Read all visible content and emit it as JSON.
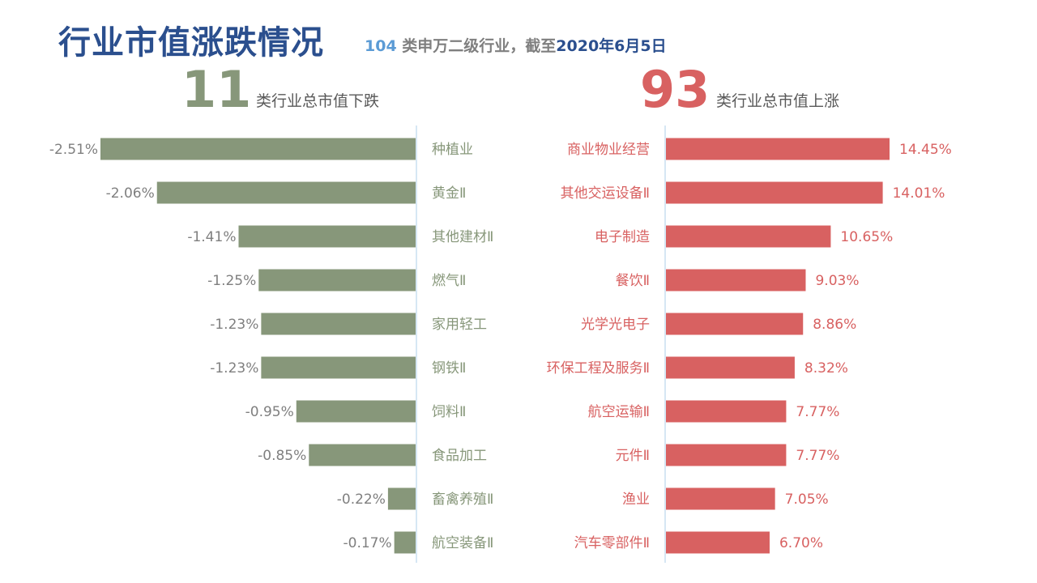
{
  "header": {
    "title": "行业市值涨跌情况",
    "subtitle_count": "104",
    "subtitle_text": " 类申万二级行业，截至",
    "subtitle_date": "2020年6月5日"
  },
  "summary": {
    "down_count": "11",
    "down_label": "类行业总市值下跌",
    "up_count": "93",
    "up_label": "类行业总市值上涨"
  },
  "colors": {
    "down": "#87977a",
    "up": "#d86161",
    "title": "#2b4f8e",
    "divider": "#c9dff0"
  },
  "chart_data": [
    {
      "type": "bar",
      "orientation": "horizontal",
      "direction": "down",
      "categories": [
        "种植业",
        "黄金Ⅱ",
        "其他建材Ⅱ",
        "燃气Ⅱ",
        "家用轻工",
        "钢铁Ⅱ",
        "饲料Ⅱ",
        "食品加工",
        "畜禽养殖Ⅱ",
        "航空装备Ⅱ"
      ],
      "values": [
        -2.51,
        -2.06,
        -1.41,
        -1.25,
        -1.23,
        -1.23,
        -0.95,
        -0.85,
        -0.22,
        -0.17
      ],
      "labels": [
        "-2.51%",
        "-2.06%",
        "-1.41%",
        "-1.25%",
        "-1.23%",
        "-1.23%",
        "-0.95%",
        "-0.85%",
        "-0.22%",
        "-0.17%"
      ],
      "unit": "%",
      "color": "#87977a"
    },
    {
      "type": "bar",
      "orientation": "horizontal",
      "direction": "up",
      "categories": [
        "商业物业经营",
        "其他交运设备Ⅱ",
        "电子制造",
        "餐饮Ⅱ",
        "光学光电子",
        "环保工程及服务Ⅱ",
        "航空运输Ⅱ",
        "元件Ⅱ",
        "渔业",
        "汽车零部件Ⅱ"
      ],
      "values": [
        14.45,
        14.01,
        10.65,
        9.03,
        8.86,
        8.32,
        7.77,
        7.77,
        7.05,
        6.7
      ],
      "labels": [
        "14.45%",
        "14.01%",
        "10.65%",
        "9.03%",
        "8.86%",
        "8.32%",
        "7.77%",
        "7.77%",
        "7.05%",
        "6.70%"
      ],
      "unit": "%",
      "color": "#d86161"
    }
  ]
}
